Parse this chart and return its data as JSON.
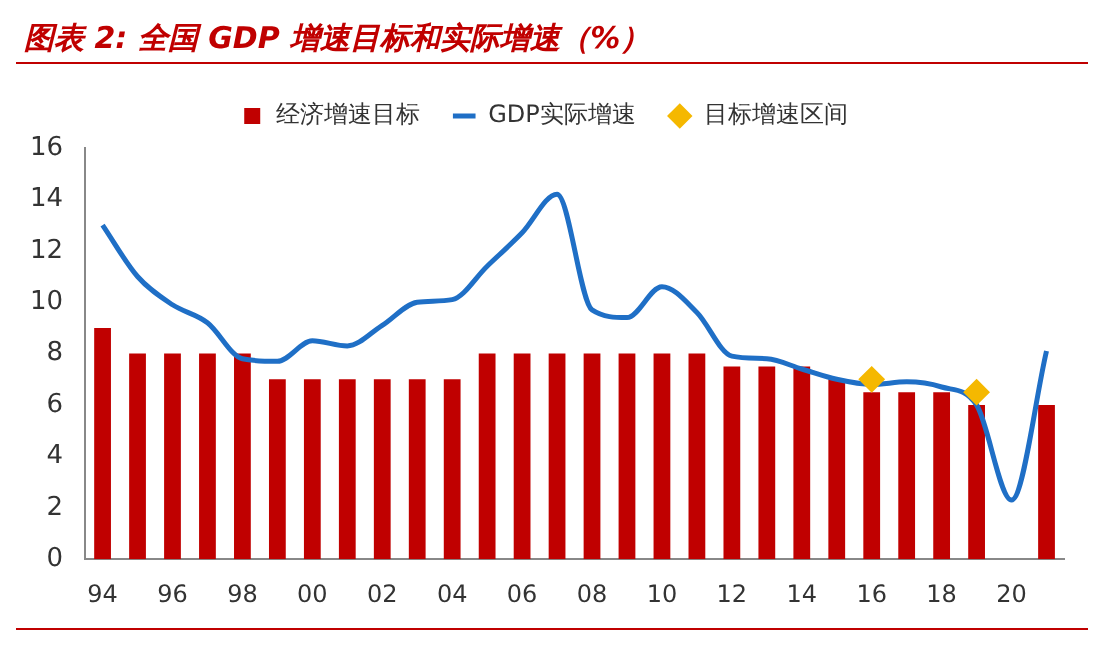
{
  "chart_data": {
    "type": "bar",
    "title": "图表 2:  全国 GDP 增速目标和实际增速（%）",
    "categories": [
      "94",
      null,
      "96",
      null,
      "98",
      null,
      "00",
      null,
      "02",
      null,
      "04",
      null,
      "06",
      null,
      "08",
      null,
      "10",
      null,
      "12",
      null,
      "14",
      null,
      "16",
      null,
      "18",
      null,
      "20",
      null
    ],
    "series": [
      {
        "name": "经济增速目标",
        "color": "#c00000",
        "values": [
          9,
          8,
          8,
          8,
          8,
          7,
          7,
          7,
          7,
          7,
          7,
          8,
          8,
          8,
          8,
          8,
          8,
          8,
          7.5,
          7.5,
          7.5,
          7,
          6.5,
          6.5,
          6.5,
          6,
          null,
          6
        ]
      },
      {
        "name": "GDP实际增速",
        "type": "line",
        "color": "#1f6fc6",
        "marker": "none",
        "values": [
          13,
          11,
          9.9,
          9.2,
          7.8,
          7.7,
          8.5,
          8.3,
          9.1,
          10,
          10.1,
          11.4,
          12.7,
          14.2,
          9.7,
          9.4,
          10.6,
          9.6,
          7.9,
          7.8,
          7.4,
          7,
          6.8,
          6.9,
          6.7,
          6,
          2.3,
          8.1
        ]
      },
      {
        "name": "目标增速区间",
        "type": "scatter",
        "color": "#f5b800",
        "marker": "diamond",
        "values": [
          null,
          null,
          null,
          null,
          null,
          null,
          null,
          null,
          null,
          null,
          null,
          null,
          null,
          null,
          null,
          null,
          null,
          null,
          null,
          null,
          null,
          null,
          7,
          null,
          null,
          6.5,
          null,
          null
        ]
      }
    ],
    "ylim": [
      0,
      16
    ],
    "yticks": [
      0,
      2,
      4,
      6,
      8,
      10,
      12,
      14,
      16
    ],
    "grid": false,
    "legend": "top"
  }
}
